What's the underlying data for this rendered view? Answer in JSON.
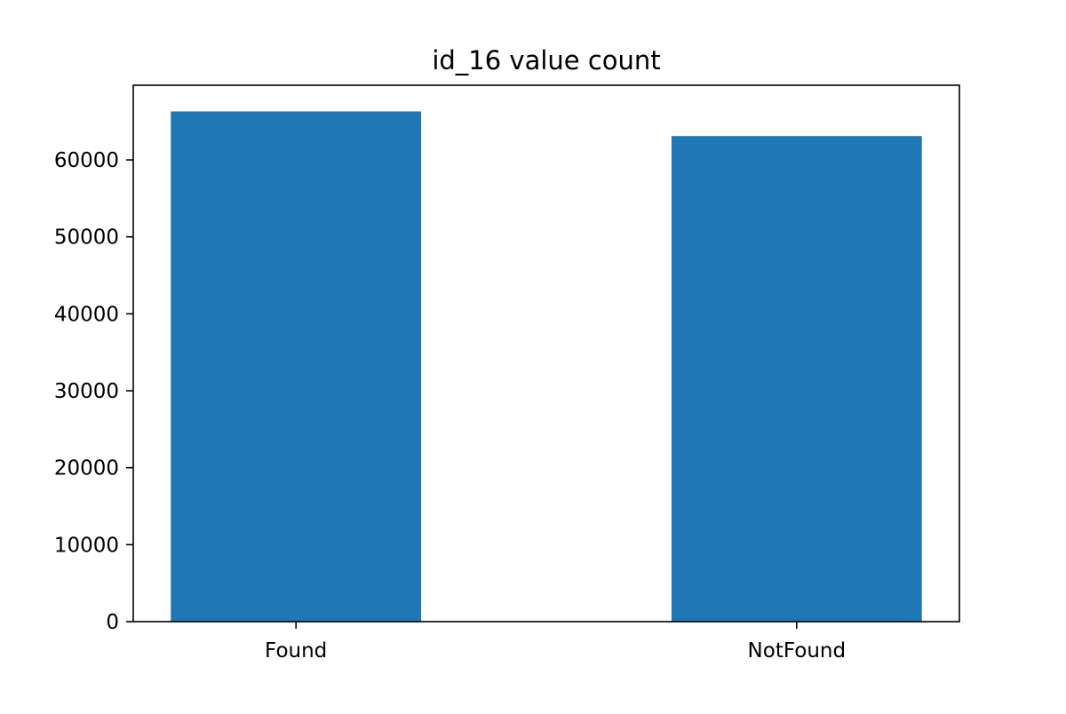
{
  "chart_data": {
    "type": "bar",
    "title": "id_16 value count",
    "xlabel": "",
    "ylabel": "",
    "categories": [
      "Found",
      "NotFound"
    ],
    "values": [
      66300,
      63100
    ],
    "ylim": [
      0,
      69700
    ],
    "yticks": [
      0,
      10000,
      20000,
      30000,
      40000,
      50000,
      60000
    ],
    "ytick_labels": [
      "0",
      "10000",
      "20000",
      "30000",
      "40000",
      "50000",
      "60000"
    ],
    "bar_color": "#1f77b4",
    "grid": false,
    "legend": "none"
  }
}
